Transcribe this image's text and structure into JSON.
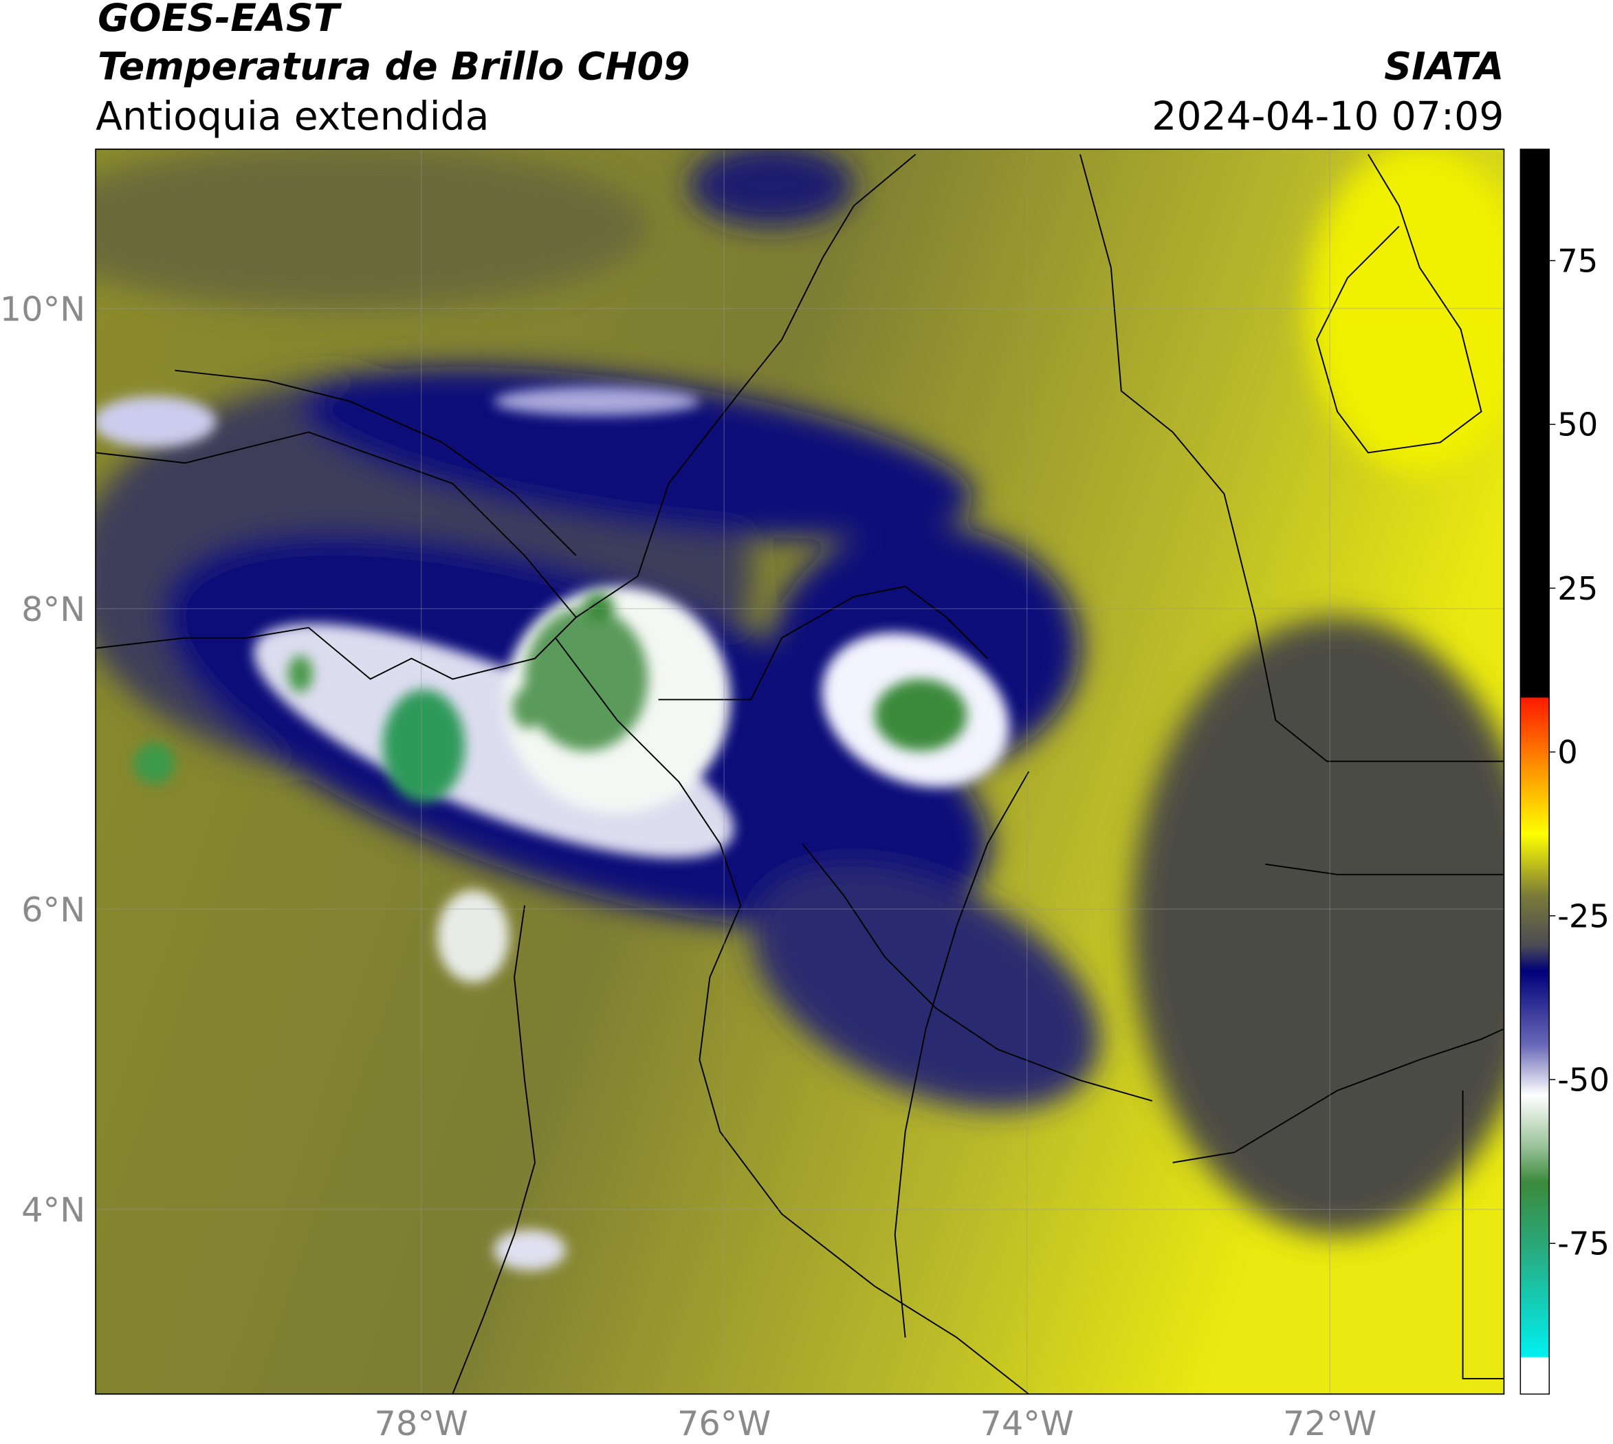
{
  "chart_data": {
    "type": "map",
    "title": "GOES-EAST",
    "subtitle": "Temperatura de Brillo CH09",
    "region": "Antioquia extendida",
    "source": "SIATA",
    "date": "2024-04-10 07:09",
    "xlim": [
      -80.15,
      -70.85
    ],
    "ylim": [
      2.77,
      11.06
    ],
    "xticks": [
      {
        "value": -78,
        "label": "78°W"
      },
      {
        "value": -76,
        "label": "76°W"
      },
      {
        "value": -74,
        "label": "74°W"
      },
      {
        "value": -72,
        "label": "72°W"
      }
    ],
    "yticks": [
      {
        "value": 10,
        "label": "10°N"
      },
      {
        "value": 8,
        "label": "8°N"
      },
      {
        "value": 6,
        "label": "6°N"
      },
      {
        "value": 4,
        "label": "4°N"
      }
    ],
    "grid": true,
    "colorbar": {
      "lim": [
        -98,
        92
      ],
      "ticks": [
        75,
        50,
        25,
        0,
        -25,
        -50,
        -75
      ]
    }
  }
}
